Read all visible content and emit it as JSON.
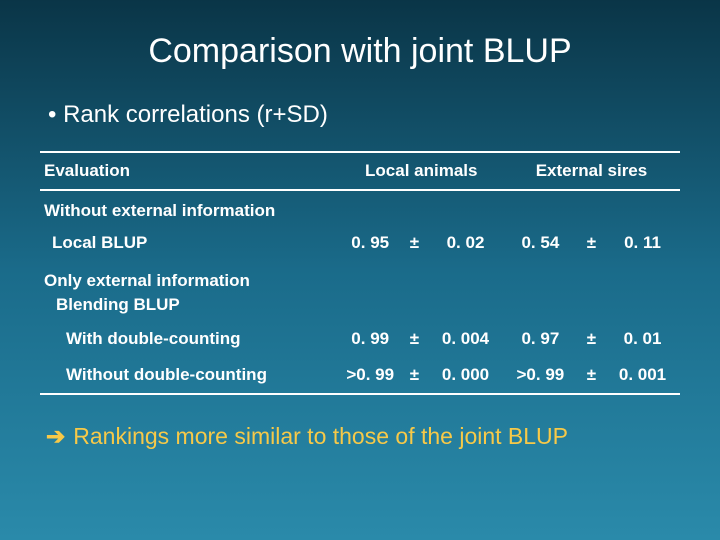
{
  "title": "Comparison with joint BLUP",
  "bullet": "• Rank correlations (r+SD)",
  "table": {
    "header": {
      "evaluation": "Evaluation",
      "local_animals": "Local animals",
      "external_sires": "External sires"
    },
    "sections": {
      "without_ext": "Without external information",
      "local_blup": "Local BLUP",
      "only_ext": "Only external information",
      "blending": "Blending BLUP",
      "with_dc": "With double-counting",
      "without_dc": "Without double-counting"
    },
    "rows": {
      "local_blup": {
        "la_r": "0. 95",
        "la_sd": "0. 02",
        "es_r": "0. 54",
        "es_sd": "0. 11"
      },
      "with_dc": {
        "la_r": "0. 99",
        "la_sd": "0. 004",
        "es_r": "0. 97",
        "es_sd": "0. 01"
      },
      "without_dc": {
        "la_r": ">0. 99",
        "la_sd": "0. 000",
        "es_r": ">0. 99",
        "es_sd": "0. 001"
      }
    },
    "pm": "±"
  },
  "conclusion": {
    "arrow": "➔",
    "text": "Rankings more similar to those of the joint BLUP"
  },
  "colors": {
    "bg_top": "#0a3547",
    "bg_mid": "#1a6b8a",
    "bg_bot": "#2a8aaa",
    "text": "#ffffff",
    "accent": "#f7c948",
    "rule": "#ffffff"
  }
}
